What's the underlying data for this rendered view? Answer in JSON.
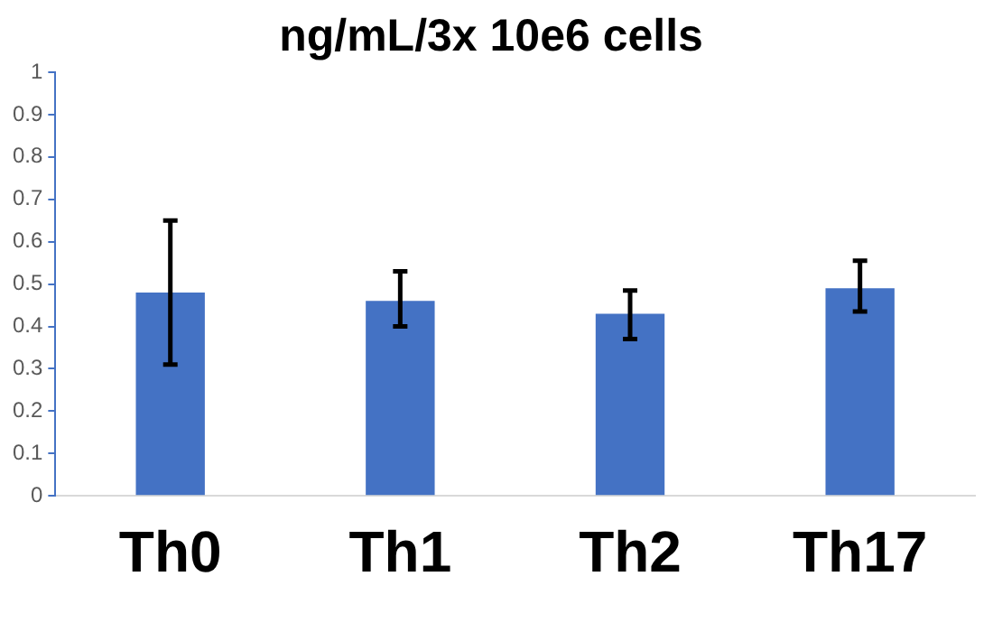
{
  "chart_data": {
    "type": "bar",
    "title": "ng/mL/3x 10e6 cells",
    "categories": [
      "Th0",
      "Th1",
      "Th2",
      "Th17"
    ],
    "values": [
      0.48,
      0.46,
      0.43,
      0.49
    ],
    "errors": [
      [
        0.31,
        0.65
      ],
      [
        0.4,
        0.53
      ],
      [
        0.37,
        0.485
      ],
      [
        0.435,
        0.555
      ]
    ],
    "color": "#4472c4",
    "ylim": [
      0,
      1
    ],
    "yticks": [
      0,
      0.1,
      0.2,
      0.3,
      0.4,
      0.5,
      0.6,
      0.7,
      0.8,
      0.9,
      1
    ],
    "grid": false,
    "legend": false
  }
}
